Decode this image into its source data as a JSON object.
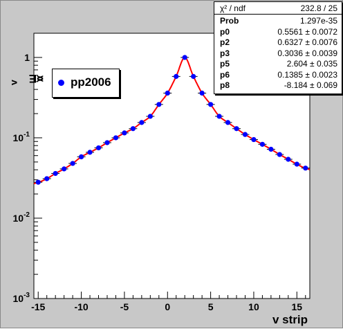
{
  "ylabel_main": "<E",
  "ylabel_sub": "v",
  "ylabel_close": ">",
  "chart_data": {
    "type": "scatter",
    "title": "",
    "xlabel": "v strip",
    "ylabel": "<E_v>",
    "yscale": "log",
    "xlim": [
      -15.5,
      16.5
    ],
    "ylim": [
      0.001,
      2
    ],
    "x_ticks": [
      -15,
      -10,
      -5,
      0,
      5,
      10,
      15
    ],
    "x_tick_labels": [
      "-15",
      "-10",
      "-5",
      "0",
      "5",
      "10",
      "15"
    ],
    "y_ticks": [
      0.001,
      0.01,
      0.1,
      1
    ],
    "y_tick_labels": [
      "10-3",
      "10-2",
      "10-1",
      "1"
    ],
    "series": [
      {
        "name": "pp2006",
        "color": "#0000ff",
        "x": [
          -15,
          -14,
          -13,
          -12,
          -11,
          -10,
          -9,
          -8,
          -7,
          -6,
          -5,
          -4,
          -3,
          -2,
          -1,
          0,
          1,
          2,
          3,
          4,
          5,
          6,
          7,
          8,
          9,
          10,
          11,
          12,
          13,
          14,
          15,
          16
        ],
        "y": [
          0.028,
          0.031,
          0.036,
          0.041,
          0.048,
          0.058,
          0.066,
          0.075,
          0.087,
          0.1,
          0.115,
          0.13,
          0.155,
          0.185,
          0.26,
          0.36,
          0.58,
          1.0,
          0.58,
          0.36,
          0.26,
          0.185,
          0.155,
          0.13,
          0.11,
          0.095,
          0.083,
          0.072,
          0.062,
          0.054,
          0.047,
          0.042
        ]
      }
    ],
    "fit_color": "#ff0000",
    "grid": false,
    "legend_position": "upper-left"
  },
  "legend": {
    "label": "pp2006"
  },
  "stats": {
    "header": {
      "key": "χ² / ndf",
      "value": "232.8 / 25"
    },
    "rows": [
      {
        "key": "Prob",
        "value": "1.297e-35"
      },
      {
        "key": "p0",
        "value": "0.5561 ± 0.0072"
      },
      {
        "key": "p2",
        "value": "0.6327 ± 0.0076"
      },
      {
        "key": "p3",
        "value": "0.3036 ± 0.0039"
      },
      {
        "key": "p5",
        "value": "2.604 ± 0.035"
      },
      {
        "key": "p6",
        "value": "0.1385 ± 0.0023"
      },
      {
        "key": "p8",
        "value": "-8.184 ± 0.069"
      }
    ]
  }
}
